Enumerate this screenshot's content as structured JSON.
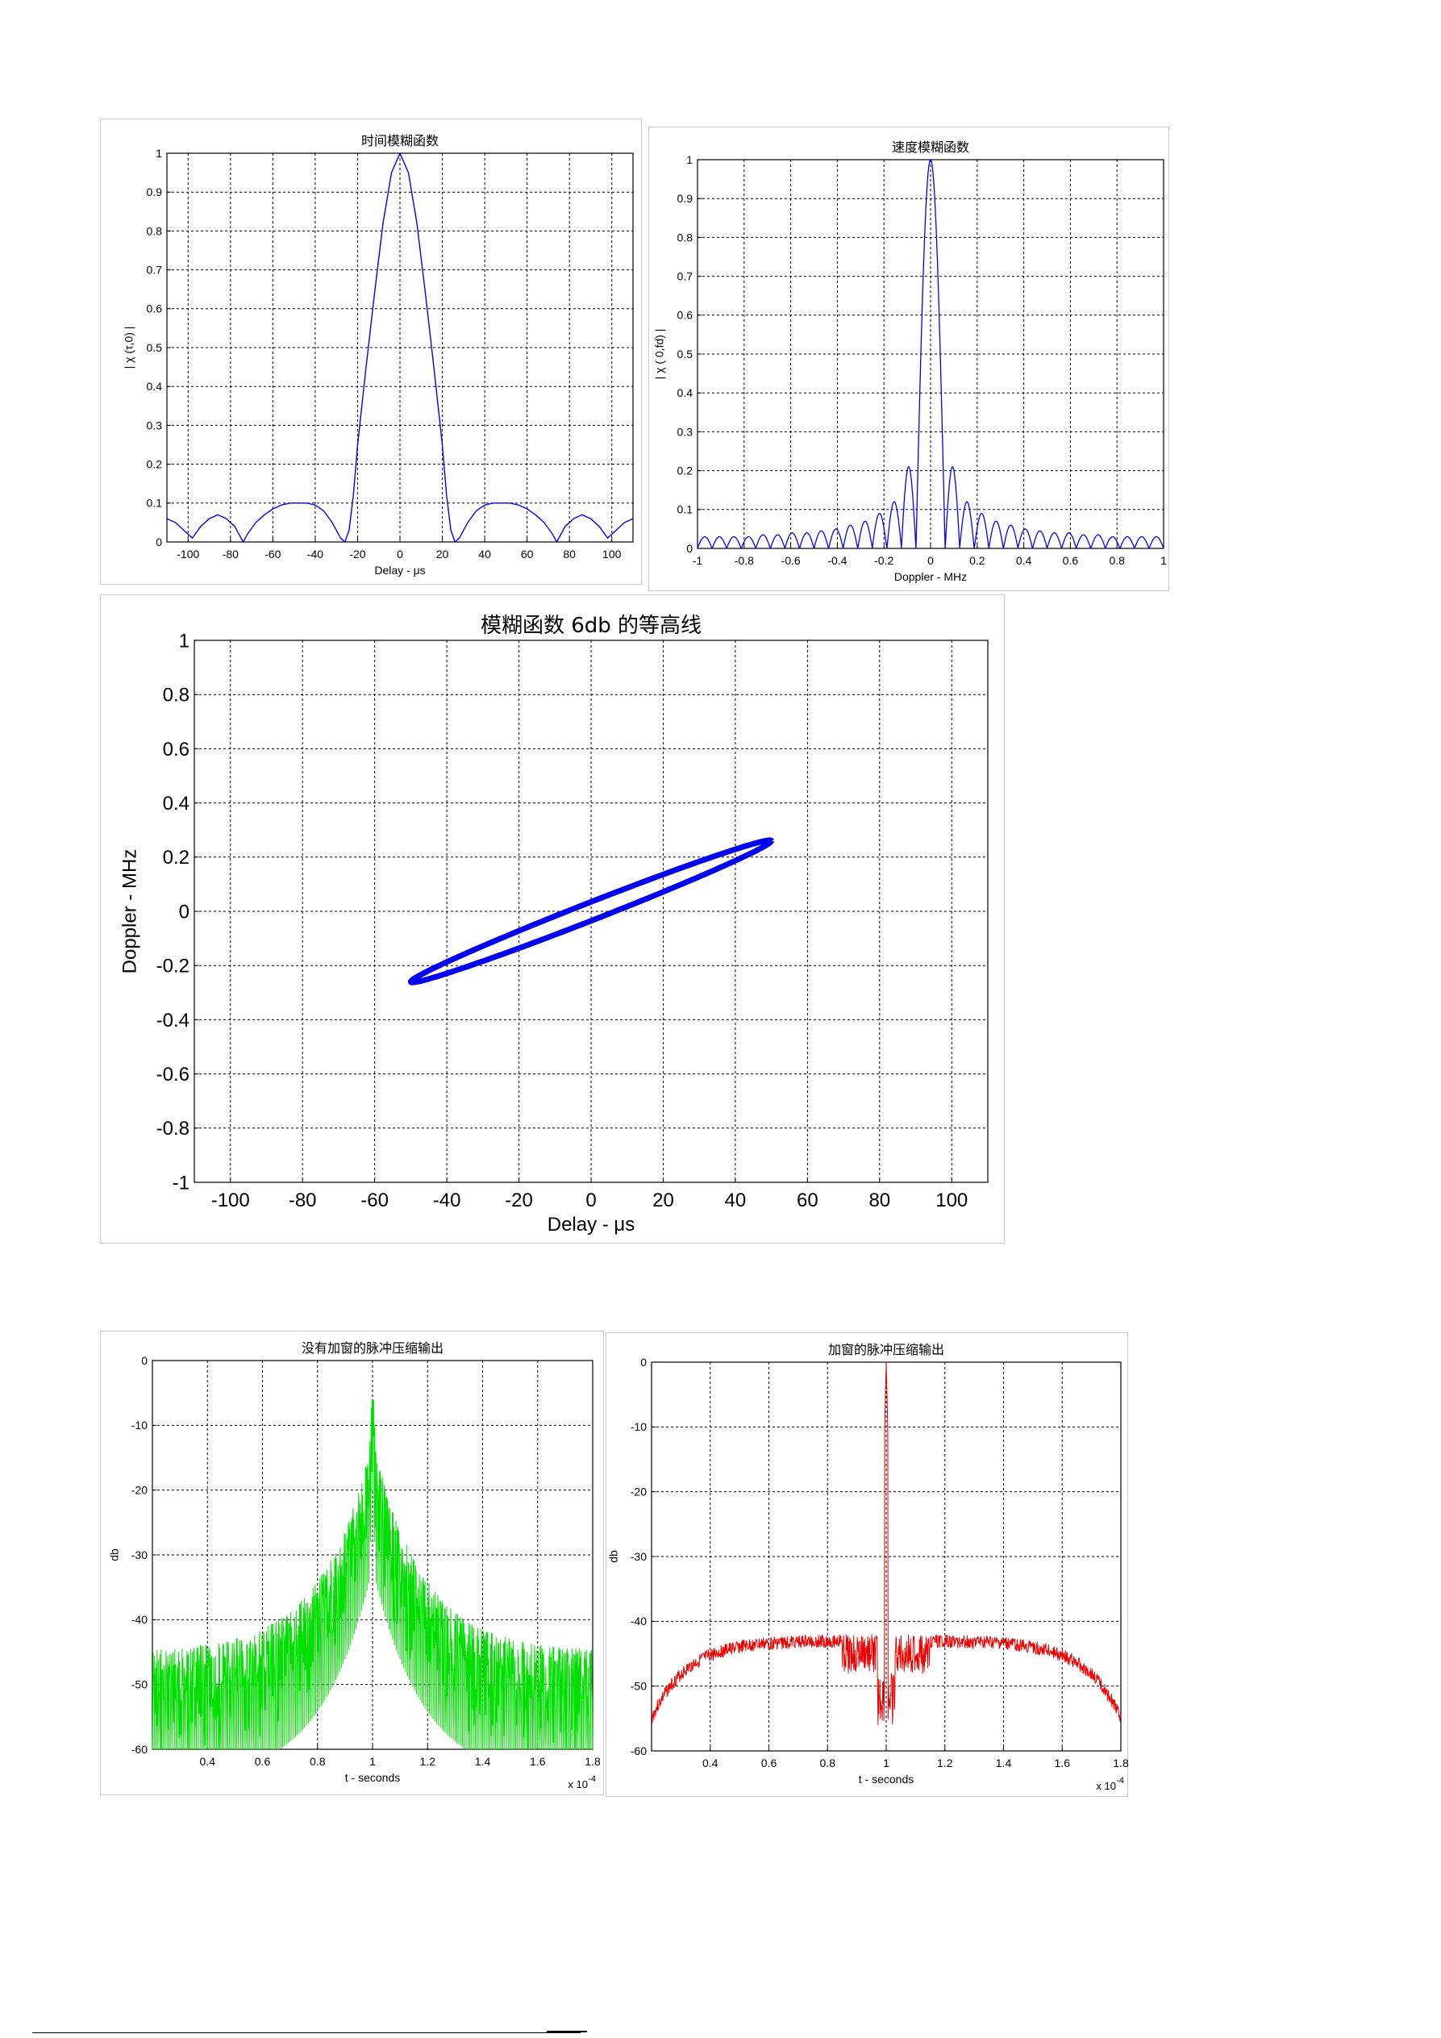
{
  "chart_data": [
    {
      "type": "line",
      "title": "时间模糊函数",
      "xlabel": "Delay - μs",
      "ylabel": "| χ (τ,0) |",
      "xlim": [
        -110,
        110
      ],
      "ylim": [
        0,
        1
      ],
      "xticks": [
        -100,
        -80,
        -60,
        -40,
        -20,
        0,
        20,
        40,
        60,
        80,
        100
      ],
      "yticks": [
        0,
        0.1,
        0.2,
        0.3,
        0.4,
        0.5,
        0.6,
        0.7,
        0.8,
        0.9,
        1
      ],
      "grid": true,
      "color": "#0000ff",
      "series": [
        {
          "x": [
            -110,
            -106,
            -102,
            -98,
            -94,
            -90,
            -86,
            -82,
            -78,
            -76,
            -74,
            -72,
            -68,
            -64,
            -60,
            -56,
            -52,
            -48,
            -44,
            -40,
            -36,
            -32,
            -28,
            -26,
            -24,
            -22,
            -20,
            -16,
            -12,
            -8,
            -4,
            0,
            4,
            8,
            12,
            16,
            20,
            22,
            24,
            26,
            28,
            32,
            36,
            40,
            44,
            48,
            52,
            56,
            60,
            64,
            68,
            72,
            74,
            76,
            78,
            82,
            86,
            90,
            94,
            98,
            102,
            106,
            110
          ],
          "y": [
            0.06,
            0.05,
            0.03,
            0.01,
            0.04,
            0.06,
            0.07,
            0.06,
            0.04,
            0.02,
            0.0,
            0.02,
            0.05,
            0.07,
            0.085,
            0.095,
            0.1,
            0.1,
            0.1,
            0.095,
            0.08,
            0.05,
            0.01,
            0.0,
            0.03,
            0.12,
            0.25,
            0.45,
            0.64,
            0.82,
            0.95,
            1.0,
            0.95,
            0.82,
            0.64,
            0.45,
            0.25,
            0.12,
            0.03,
            0.0,
            0.01,
            0.05,
            0.08,
            0.095,
            0.1,
            0.1,
            0.1,
            0.095,
            0.085,
            0.07,
            0.05,
            0.02,
            0.0,
            0.02,
            0.04,
            0.06,
            0.07,
            0.06,
            0.04,
            0.01,
            0.03,
            0.05,
            0.06
          ]
        }
      ]
    },
    {
      "type": "line",
      "title": "速度模糊函数",
      "xlabel": "Doppler - MHz",
      "ylabel": "| χ ( 0,fd) |",
      "xlim": [
        -1,
        1
      ],
      "ylim": [
        0,
        1
      ],
      "xticks": [
        -1,
        -0.8,
        -0.6,
        -0.4,
        -0.2,
        0,
        0.2,
        0.4,
        0.6,
        0.8,
        1
      ],
      "yticks": [
        0,
        0.1,
        0.2,
        0.3,
        0.4,
        0.5,
        0.6,
        0.7,
        0.8,
        0.9,
        1
      ],
      "grid": true,
      "color": "#0000ff",
      "mainlobe_halfwidth": 0.0625,
      "sidelobes": [
        {
          "center": 0.094,
          "peak": 0.21
        },
        {
          "center": 0.156,
          "peak": 0.12
        },
        {
          "center": 0.219,
          "peak": 0.09
        },
        {
          "center": 0.281,
          "peak": 0.07
        },
        {
          "center": 0.344,
          "peak": 0.06
        },
        {
          "center": 0.406,
          "peak": 0.05
        },
        {
          "center": 0.469,
          "peak": 0.045
        },
        {
          "center": 0.531,
          "peak": 0.04
        },
        {
          "center": 0.594,
          "peak": 0.04
        },
        {
          "center": 0.656,
          "peak": 0.035
        },
        {
          "center": 0.719,
          "peak": 0.035
        },
        {
          "center": 0.781,
          "peak": 0.03
        },
        {
          "center": 0.844,
          "peak": 0.03
        },
        {
          "center": 0.906,
          "peak": 0.03
        },
        {
          "center": 0.969,
          "peak": 0.03
        }
      ]
    },
    {
      "type": "line",
      "title": "模糊函数 6db 的等高线",
      "xlabel": "Delay - μs",
      "ylabel": "Doppler - MHz",
      "xlim": [
        -110,
        110
      ],
      "ylim": [
        -1,
        1
      ],
      "xticks": [
        -100,
        -80,
        -60,
        -40,
        -20,
        0,
        20,
        40,
        60,
        80,
        100
      ],
      "yticks": [
        -1,
        -0.8,
        -0.6,
        -0.4,
        -0.2,
        0,
        0.2,
        0.4,
        0.6,
        0.8,
        1
      ],
      "grid": true,
      "color": "#0000ee",
      "contour_ellipse": {
        "center": [
          0,
          0
        ],
        "end_point": [
          50,
          0.26
        ],
        "half_thickness": 0.035
      }
    },
    {
      "type": "line",
      "title": "没有加窗的脉冲压缩输出",
      "xlabel": "t - seconds",
      "ylabel": "db",
      "exponent_label": "x 10",
      "exponent": "-4",
      "xlim": [
        0.2,
        1.8
      ],
      "ylim": [
        -60,
        0
      ],
      "xticks": [
        0.4,
        0.6,
        0.8,
        1,
        1.2,
        1.4,
        1.6,
        1.8
      ],
      "yticks": [
        0,
        -10,
        -20,
        -30,
        -40,
        -50,
        -60
      ],
      "grid": true,
      "color": "#00e000",
      "envelope": {
        "peak_at": 1.0,
        "near_level": -12,
        "far_level": -45,
        "decay": 0.18,
        "ripple_depth": 15
      }
    },
    {
      "type": "line",
      "title": "加窗的脉冲压缩输出",
      "xlabel": "t - seconds",
      "ylabel": "db",
      "exponent_label": "x 10",
      "exponent": "-4",
      "xlim": [
        0.2,
        1.8
      ],
      "ylim": [
        -60,
        0
      ],
      "xticks": [
        0.4,
        0.6,
        0.8,
        1,
        1.2,
        1.4,
        1.6,
        1.8
      ],
      "yticks": [
        0,
        -10,
        -20,
        -30,
        -40,
        -50,
        -60
      ],
      "grid": true,
      "color": "#ee0000",
      "envelope": {
        "peak_at": 1.0,
        "sidelobe_level": -42,
        "edge_level": -54,
        "ripple_depth": 6
      }
    }
  ]
}
